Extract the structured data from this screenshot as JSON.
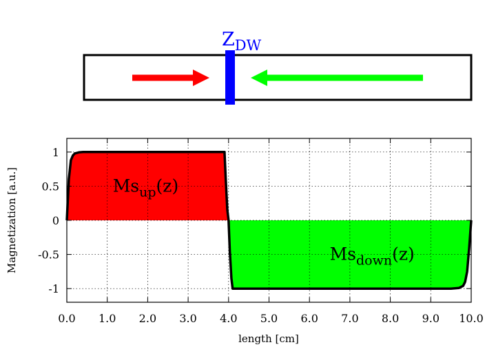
{
  "diagram": {
    "wall_label_main": "Z",
    "wall_label_sub": "DW",
    "colors": {
      "left_arrow": "#ff0000",
      "right_arrow": "#00ff00",
      "wall": "#0000ff"
    }
  },
  "chart_data": {
    "type": "area",
    "xlabel": "length [cm]",
    "ylabel": "Magnetization [a.u.]",
    "xlim": [
      0,
      10
    ],
    "ylim": [
      -1.2,
      1.2
    ],
    "xticks": [
      0,
      1,
      2,
      3,
      4,
      5,
      6,
      7,
      8,
      9,
      10
    ],
    "xtick_labels": [
      "0.0",
      "1.0",
      "2.0",
      "3.0",
      "4.0",
      "5.0",
      "6.0",
      "7.0",
      "8.0",
      "9.0",
      "10.0"
    ],
    "yticks": [
      -1,
      -0.5,
      0,
      0.5,
      1
    ],
    "ytick_labels": [
      "-1",
      "-0.5",
      "0",
      "0.5",
      "1"
    ],
    "grid": true,
    "series": [
      {
        "color": "#ff0000",
        "x": [
          0.0,
          0.05,
          0.1,
          0.15,
          0.2,
          0.3,
          0.4,
          0.5,
          3.9,
          3.93,
          3.97,
          4.0
        ],
        "y": [
          0.0,
          0.6,
          0.88,
          0.95,
          0.98,
          0.995,
          1.0,
          1.0,
          1.0,
          0.6,
          0.15,
          0.0
        ]
      },
      {
        "color": "#00ff00",
        "x": [
          4.0,
          4.03,
          4.07,
          4.1,
          9.5,
          9.7,
          9.8,
          9.85,
          9.9,
          9.95,
          10.0
        ],
        "y": [
          0.0,
          -0.45,
          -0.85,
          -1.0,
          -1.0,
          -0.99,
          -0.96,
          -0.9,
          -0.75,
          -0.4,
          0.0
        ]
      }
    ],
    "annotations": [
      {
        "main": "Ms",
        "sub": "up",
        "tail": "(z)",
        "x": 1.95,
        "y": 0.5
      },
      {
        "main": "Ms",
        "sub": "down",
        "tail": "(z)",
        "x": 7.55,
        "y": -0.5
      }
    ]
  }
}
